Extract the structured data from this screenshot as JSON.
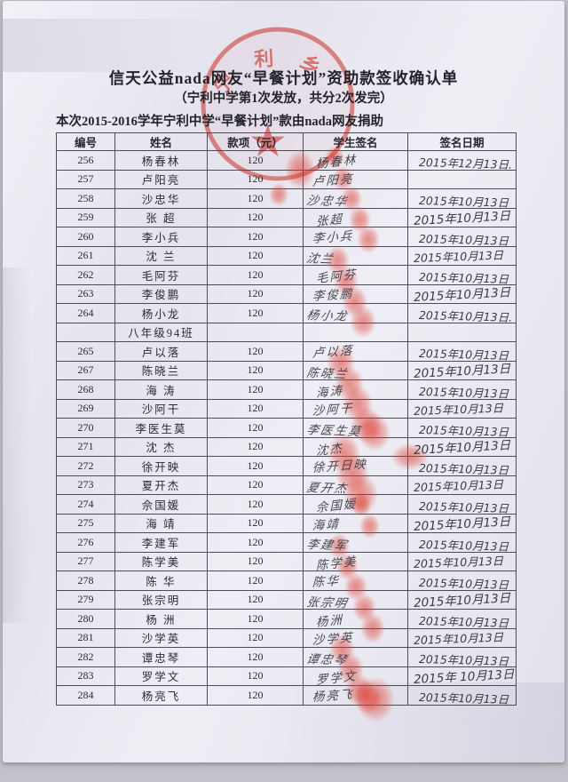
{
  "document": {
    "title": "信天公益nada网友“早餐计划”资助款签收确认单",
    "subtitle": "（宁利中学第1次发放，共分2次发完）",
    "note": "本次2015-2016学年宁利中学“早餐计划”款由nada网友捐助",
    "stamp_text": "宁利乡"
  },
  "colors": {
    "stamp_red": "#e0443a",
    "fingerprint_red": "#df372a",
    "ink": "#31313a",
    "paper": "#ebeaf2"
  },
  "table": {
    "headers": [
      "编号",
      "姓名",
      "款项（元）",
      "学生签名",
      "签名日期"
    ],
    "rows": [
      {
        "id": "256",
        "name": "杨春林",
        "amount": "120",
        "signature": "杨春林",
        "date": "2015年12月13日."
      },
      {
        "id": "257",
        "name": "卢阳亮",
        "amount": "120",
        "signature": "卢阳亮",
        "date": ""
      },
      {
        "id": "258",
        "name": "沙忠华",
        "amount": "120",
        "signature": "沙忠华",
        "date": "2015年10月13日"
      },
      {
        "id": "259",
        "name": "张 超",
        "amount": "120",
        "signature": "张超",
        "date": "2015年10月13日"
      },
      {
        "id": "260",
        "name": "李小兵",
        "amount": "120",
        "signature": "李小兵",
        "date": "2015年10月13日"
      },
      {
        "id": "261",
        "name": "沈 兰",
        "amount": "120",
        "signature": "沈兰",
        "date": "2015年10月13日"
      },
      {
        "id": "262",
        "name": "毛阿芬",
        "amount": "120",
        "signature": "毛阿芬",
        "date": "2015年10月13日"
      },
      {
        "id": "263",
        "name": "李俊鹏",
        "amount": "120",
        "signature": "李俊鹏",
        "date": "2015年10月13日"
      },
      {
        "id": "264",
        "name": "杨小龙",
        "amount": "120",
        "signature": "杨小龙",
        "date": "2015年10月13日."
      },
      {
        "id": "",
        "name": "八年级94班",
        "amount": "",
        "signature": "",
        "date": "",
        "section": true
      },
      {
        "id": "265",
        "name": "卢以落",
        "amount": "120",
        "signature": "卢以落",
        "date": "2015年10月13日"
      },
      {
        "id": "267",
        "name": "陈晓兰",
        "amount": "120",
        "signature": "陈晓兰",
        "date": "2015年10月13日"
      },
      {
        "id": "268",
        "name": "海 涛",
        "amount": "120",
        "signature": "海涛",
        "date": "2015年10月13日"
      },
      {
        "id": "269",
        "name": "沙阿干",
        "amount": "120",
        "signature": "沙阿干",
        "date": "2015年10月13日"
      },
      {
        "id": "270",
        "name": "李医生莫",
        "amount": "120",
        "signature": "李医生莫",
        "date": "2015年10月13日"
      },
      {
        "id": "271",
        "name": "沈 杰",
        "amount": "120",
        "signature": "沈杰",
        "date": "2015年10月13日"
      },
      {
        "id": "272",
        "name": "徐开映",
        "amount": "120",
        "signature": "徐开日映",
        "date": "2015年10月13日"
      },
      {
        "id": "273",
        "name": "夏开杰",
        "amount": "120",
        "signature": "夏开杰",
        "date": "2015年10月13日"
      },
      {
        "id": "274",
        "name": "佘国媛",
        "amount": "120",
        "signature": "佘国媛",
        "date": "2015年10月13日"
      },
      {
        "id": "275",
        "name": "海 靖",
        "amount": "120",
        "signature": "海靖",
        "date": "2015年10月13日"
      },
      {
        "id": "276",
        "name": "李建军",
        "amount": "120",
        "signature": "李建军",
        "date": "2015年10月13日"
      },
      {
        "id": "277",
        "name": "陈学美",
        "amount": "120",
        "signature": "陈学美",
        "date": "2015年10月13日"
      },
      {
        "id": "278",
        "name": "陈 华",
        "amount": "120",
        "signature": "陈华",
        "date": "2015年10月13日"
      },
      {
        "id": "279",
        "name": "张宗明",
        "amount": "120",
        "signature": "张宗明",
        "date": "2015年10月13日"
      },
      {
        "id": "280",
        "name": "杨 洲",
        "amount": "120",
        "signature": "杨洲",
        "date": "2015年10月13日"
      },
      {
        "id": "281",
        "name": "沙学英",
        "amount": "120",
        "signature": "沙学英",
        "date": "2015年10月13日"
      },
      {
        "id": "282",
        "name": "谭忠琴",
        "amount": "120",
        "signature": "谭忠琴",
        "date": "2015年10月13日"
      },
      {
        "id": "283",
        "name": "罗学文",
        "amount": "120",
        "signature": "罗学文",
        "date": "2015年 10月13日"
      },
      {
        "id": "284",
        "name": "杨亮飞",
        "amount": "120",
        "signature": "杨亮飞",
        "date": "2015年10月13日"
      }
    ]
  }
}
